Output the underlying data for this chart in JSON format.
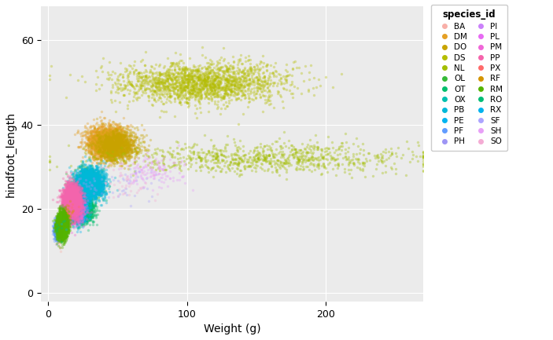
{
  "title": "species_id",
  "xlabel": "Weight (g)",
  "ylabel": "hindfoot_length",
  "xlim": [
    -5,
    270
  ],
  "ylim": [
    -2,
    68
  ],
  "xticks": [
    0,
    100,
    200
  ],
  "yticks": [
    0,
    20,
    40,
    60
  ],
  "background_color": "#ebebeb",
  "grid_color": "#ffffff",
  "alpha": 0.35,
  "point_size": 6,
  "species": [
    {
      "id": "BA",
      "color": "#F8AFA8",
      "weight_mean": 8,
      "weight_std": 1.5,
      "hf_mean": 13,
      "hf_std": 1.2,
      "n": 40
    },
    {
      "id": "DM",
      "color": "#E5A025",
      "weight_mean": 42,
      "weight_std": 7,
      "hf_mean": 36,
      "hf_std": 1.8,
      "n": 2500
    },
    {
      "id": "DO",
      "color": "#C8A400",
      "weight_mean": 49,
      "weight_std": 8,
      "hf_mean": 35,
      "hf_std": 1.8,
      "n": 1200
    },
    {
      "id": "DS",
      "color": "#B5BE00",
      "weight_mean": 110,
      "weight_std": 30,
      "hf_mean": 50,
      "hf_std": 2.5,
      "n": 2000
    },
    {
      "id": "NL",
      "color": "#A3BE00",
      "weight_mean": 155,
      "weight_std": 55,
      "hf_mean": 32,
      "hf_std": 1.8,
      "n": 900
    },
    {
      "id": "OL",
      "color": "#36BA38",
      "weight_mean": 28,
      "weight_std": 5,
      "hf_mean": 26,
      "hf_std": 1.8,
      "n": 550
    },
    {
      "id": "OT",
      "color": "#00BE6C",
      "weight_mean": 24,
      "weight_std": 4,
      "hf_mean": 20,
      "hf_std": 1.5,
      "n": 2200
    },
    {
      "id": "OX",
      "color": "#00C0AF",
      "weight_mean": 22,
      "weight_std": 3,
      "hf_mean": 19,
      "hf_std": 1.2,
      "n": 10
    },
    {
      "id": "PB",
      "color": "#00B8D9",
      "weight_mean": 30,
      "weight_std": 5,
      "hf_mean": 26,
      "hf_std": 1.8,
      "n": 2800
    },
    {
      "id": "PE",
      "color": "#00B4F0",
      "weight_mean": 21,
      "weight_std": 4,
      "hf_mean": 20,
      "hf_std": 1.8,
      "n": 1000
    },
    {
      "id": "PF",
      "color": "#619CFF",
      "weight_mean": 7,
      "weight_std": 1.2,
      "hf_mean": 15,
      "hf_std": 1.0,
      "n": 1200
    },
    {
      "id": "PH",
      "color": "#9E95F5",
      "weight_mean": 28,
      "weight_std": 5,
      "hf_mean": 26,
      "hf_std": 2,
      "n": 25
    },
    {
      "id": "PI",
      "color": "#CB81FA",
      "weight_mean": 18,
      "weight_std": 2.5,
      "hf_mean": 22,
      "hf_std": 1.5,
      "n": 8
    },
    {
      "id": "PL",
      "color": "#E76BF3",
      "weight_mean": 20,
      "weight_std": 3,
      "hf_mean": 20,
      "hf_std": 1.8,
      "n": 30
    },
    {
      "id": "PM",
      "color": "#F067D8",
      "weight_mean": 21,
      "weight_std": 3,
      "hf_mean": 20,
      "hf_std": 1.8,
      "n": 380
    },
    {
      "id": "PP",
      "color": "#F564AC",
      "weight_mean": 17,
      "weight_std": 3,
      "hf_mean": 22,
      "hf_std": 1.8,
      "n": 2900
    },
    {
      "id": "PX",
      "color": "#FF6A6A",
      "weight_mean": 19,
      "weight_std": 2.5,
      "hf_mean": 19,
      "hf_std": 1.5,
      "n": 5
    },
    {
      "id": "RF",
      "color": "#D49400",
      "weight_mean": 13,
      "weight_std": 2,
      "hf_mean": 18,
      "hf_std": 1.5,
      "n": 70
    },
    {
      "id": "RM",
      "color": "#53B400",
      "weight_mean": 10,
      "weight_std": 2,
      "hf_mean": 16,
      "hf_std": 1.5,
      "n": 2600
    },
    {
      "id": "RO",
      "color": "#00BD76",
      "weight_mean": 9,
      "weight_std": 1.8,
      "hf_mean": 15,
      "hf_std": 1.2,
      "n": 8
    },
    {
      "id": "RX",
      "color": "#00B2EE",
      "weight_mean": 10,
      "weight_std": 1.5,
      "hf_mean": 17,
      "hf_std": 1.2,
      "n": 2
    },
    {
      "id": "SF",
      "color": "#ACA4FF",
      "weight_mean": 58,
      "weight_std": 10,
      "hf_mean": 26,
      "hf_std": 2,
      "n": 40
    },
    {
      "id": "SH",
      "color": "#E8A0F7",
      "weight_mean": 76,
      "weight_std": 12,
      "hf_mean": 29,
      "hf_std": 2,
      "n": 140
    },
    {
      "id": "SO",
      "color": "#F4ACD4",
      "weight_mean": 55,
      "weight_std": 10,
      "hf_mean": 26,
      "hf_std": 2,
      "n": 40
    }
  ],
  "legend_order": [
    "BA",
    "DM",
    "DO",
    "DS",
    "NL",
    "OL",
    "OT",
    "OX",
    "PB",
    "PE",
    "PF",
    "PH",
    "PI",
    "PL",
    "PM",
    "PP",
    "PX",
    "RF",
    "RM",
    "RO",
    "RX",
    "SF",
    "SH",
    "SO"
  ]
}
